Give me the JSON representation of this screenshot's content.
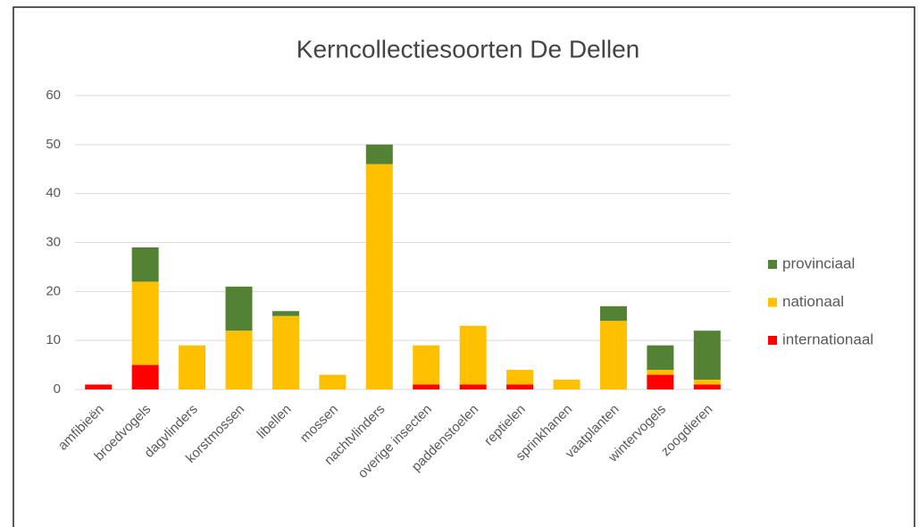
{
  "chart_data": {
    "type": "stacked_bar",
    "title": "Kerncollectiesoorten De Dellen",
    "categories": [
      "amfibieën",
      "broedvogels",
      "dagvlinders",
      "korstmossen",
      "libellen",
      "mossen",
      "nachtvlinders",
      "overige insecten",
      "paddenstoelen",
      "reptielen",
      "sprinkhanen",
      "vaatplanten",
      "wintervogels",
      "zoogdieren"
    ],
    "series": [
      {
        "name": "internationaal",
        "color": "#ff0000",
        "values": [
          1,
          5,
          0,
          0,
          0,
          0,
          0,
          1,
          1,
          1,
          0,
          0,
          3,
          1
        ]
      },
      {
        "name": "nationaal",
        "color": "#ffc000",
        "values": [
          0,
          17,
          9,
          12,
          15,
          3,
          46,
          8,
          12,
          3,
          2,
          14,
          1,
          1
        ]
      },
      {
        "name": "provinciaal",
        "color": "#548235",
        "values": [
          0,
          7,
          0,
          9,
          1,
          0,
          4,
          0,
          0,
          0,
          0,
          3,
          5,
          10
        ]
      }
    ],
    "ylim": [
      0,
      60
    ],
    "yticks": [
      0,
      10,
      20,
      30,
      40,
      50,
      60
    ],
    "grid": true,
    "legend": "right"
  }
}
